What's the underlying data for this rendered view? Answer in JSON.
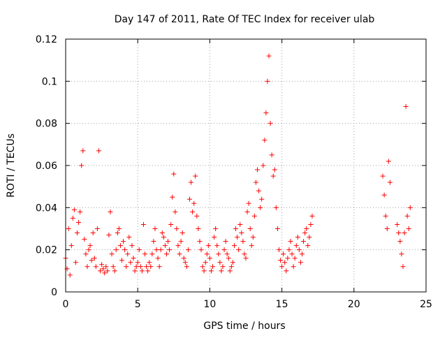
{
  "chart_data": {
    "type": "scatter",
    "title": "Day 147 of 2011, Rate Of TEC Index for receiver ulab",
    "xlabel": "GPS time / hours",
    "ylabel": "ROTI / TECUs",
    "xlim": [
      0,
      25
    ],
    "ylim": [
      0,
      0.12
    ],
    "x_ticks": [
      0,
      5,
      10,
      15,
      20,
      25
    ],
    "x_tick_labels": [
      "0",
      "5",
      "10",
      "15",
      "20",
      "25"
    ],
    "y_ticks": [
      0,
      0.02,
      0.04,
      0.06,
      0.08,
      0.1,
      0.12
    ],
    "y_tick_labels": [
      "0",
      "0.02",
      "0.04",
      "0.06",
      "0.08",
      "0.1",
      "0.12"
    ],
    "grid": true,
    "grid_style": "dotted",
    "marker": "+",
    "color": "#ff0000",
    "series": [
      {
        "x": [
          0.0,
          0.1,
          0.2,
          0.3,
          0.4,
          0.5,
          0.6,
          0.7,
          0.8,
          0.9,
          1.0,
          1.1,
          1.2,
          1.3,
          1.4,
          1.5,
          1.6,
          1.7,
          1.8,
          1.9,
          2.0,
          2.1,
          2.2,
          2.3,
          2.4,
          2.5,
          2.6,
          2.7,
          2.8,
          2.9,
          3.0,
          3.1,
          3.2,
          3.3,
          3.4,
          3.5,
          3.6,
          3.7,
          3.8,
          3.9,
          4.0,
          4.1,
          4.2,
          4.3,
          4.4,
          4.5,
          4.6,
          4.7,
          4.8,
          4.9,
          5.0,
          5.1,
          5.2,
          5.3,
          5.4,
          5.5,
          5.6,
          5.7,
          5.8,
          5.9,
          6.0,
          6.1,
          6.2,
          6.3,
          6.4,
          6.5,
          6.6,
          6.7,
          6.8,
          6.9,
          7.0,
          7.1,
          7.2,
          7.3,
          7.4,
          7.5,
          7.6,
          7.7,
          7.8,
          7.9,
          8.0,
          8.1,
          8.2,
          8.3,
          8.4,
          8.5,
          8.6,
          8.7,
          8.8,
          8.9,
          9.0,
          9.1,
          9.2,
          9.3,
          9.4,
          9.5,
          9.6,
          9.7,
          9.8,
          9.9,
          10.0,
          10.1,
          10.2,
          10.3,
          10.4,
          10.5,
          10.6,
          10.7,
          10.8,
          10.9,
          11.0,
          11.1,
          11.2,
          11.3,
          11.4,
          11.5,
          11.6,
          11.7,
          11.8,
          11.9,
          12.0,
          12.1,
          12.2,
          12.3,
          12.4,
          12.5,
          12.6,
          12.7,
          12.8,
          12.9,
          13.0,
          13.1,
          13.2,
          13.3,
          13.4,
          13.5,
          13.6,
          13.7,
          13.8,
          13.9,
          14.0,
          14.1,
          14.2,
          14.3,
          14.4,
          14.5,
          14.6,
          14.7,
          14.8,
          14.9,
          15.0,
          15.1,
          15.2,
          15.3,
          15.4,
          15.5,
          15.6,
          15.7,
          15.8,
          15.9,
          16.0,
          16.1,
          16.2,
          16.3,
          16.4,
          16.5,
          16.6,
          16.7,
          16.8,
          16.9,
          17.0,
          17.1,
          22.0,
          22.1,
          22.2,
          22.3,
          22.4,
          22.5,
          23.0,
          23.1,
          23.2,
          23.3,
          23.4,
          23.5,
          23.6,
          23.7,
          23.8,
          23.9
        ],
        "y": [
          0.016,
          0.011,
          0.03,
          0.008,
          0.022,
          0.035,
          0.039,
          0.014,
          0.028,
          0.033,
          0.038,
          0.06,
          0.067,
          0.025,
          0.018,
          0.012,
          0.02,
          0.022,
          0.015,
          0.028,
          0.016,
          0.012,
          0.03,
          0.067,
          0.01,
          0.013,
          0.011,
          0.009,
          0.012,
          0.01,
          0.027,
          0.038,
          0.018,
          0.012,
          0.01,
          0.02,
          0.028,
          0.03,
          0.022,
          0.015,
          0.024,
          0.02,
          0.012,
          0.018,
          0.026,
          0.014,
          0.022,
          0.016,
          0.01,
          0.012,
          0.014,
          0.02,
          0.012,
          0.01,
          0.032,
          0.018,
          0.012,
          0.01,
          0.014,
          0.012,
          0.018,
          0.024,
          0.03,
          0.02,
          0.016,
          0.012,
          0.02,
          0.028,
          0.026,
          0.022,
          0.018,
          0.024,
          0.02,
          0.032,
          0.045,
          0.056,
          0.038,
          0.03,
          0.022,
          0.018,
          0.024,
          0.028,
          0.016,
          0.014,
          0.012,
          0.02,
          0.044,
          0.052,
          0.038,
          0.042,
          0.055,
          0.036,
          0.03,
          0.024,
          0.02,
          0.012,
          0.01,
          0.014,
          0.018,
          0.022,
          0.016,
          0.01,
          0.012,
          0.026,
          0.03,
          0.022,
          0.018,
          0.014,
          0.01,
          0.012,
          0.02,
          0.024,
          0.018,
          0.016,
          0.01,
          0.012,
          0.014,
          0.022,
          0.03,
          0.026,
          0.02,
          0.032,
          0.028,
          0.024,
          0.018,
          0.016,
          0.038,
          0.042,
          0.03,
          0.022,
          0.026,
          0.036,
          0.052,
          0.058,
          0.048,
          0.04,
          0.044,
          0.06,
          0.072,
          0.085,
          0.1,
          0.112,
          0.08,
          0.065,
          0.055,
          0.058,
          0.04,
          0.03,
          0.02,
          0.015,
          0.012,
          0.018,
          0.014,
          0.01,
          0.016,
          0.02,
          0.024,
          0.018,
          0.012,
          0.016,
          0.022,
          0.026,
          0.02,
          0.014,
          0.018,
          0.024,
          0.028,
          0.03,
          0.022,
          0.026,
          0.032,
          0.036,
          0.055,
          0.046,
          0.036,
          0.03,
          0.062,
          0.052,
          0.032,
          0.028,
          0.024,
          0.018,
          0.012,
          0.028,
          0.088,
          0.036,
          0.03,
          0.04
        ]
      }
    ]
  }
}
